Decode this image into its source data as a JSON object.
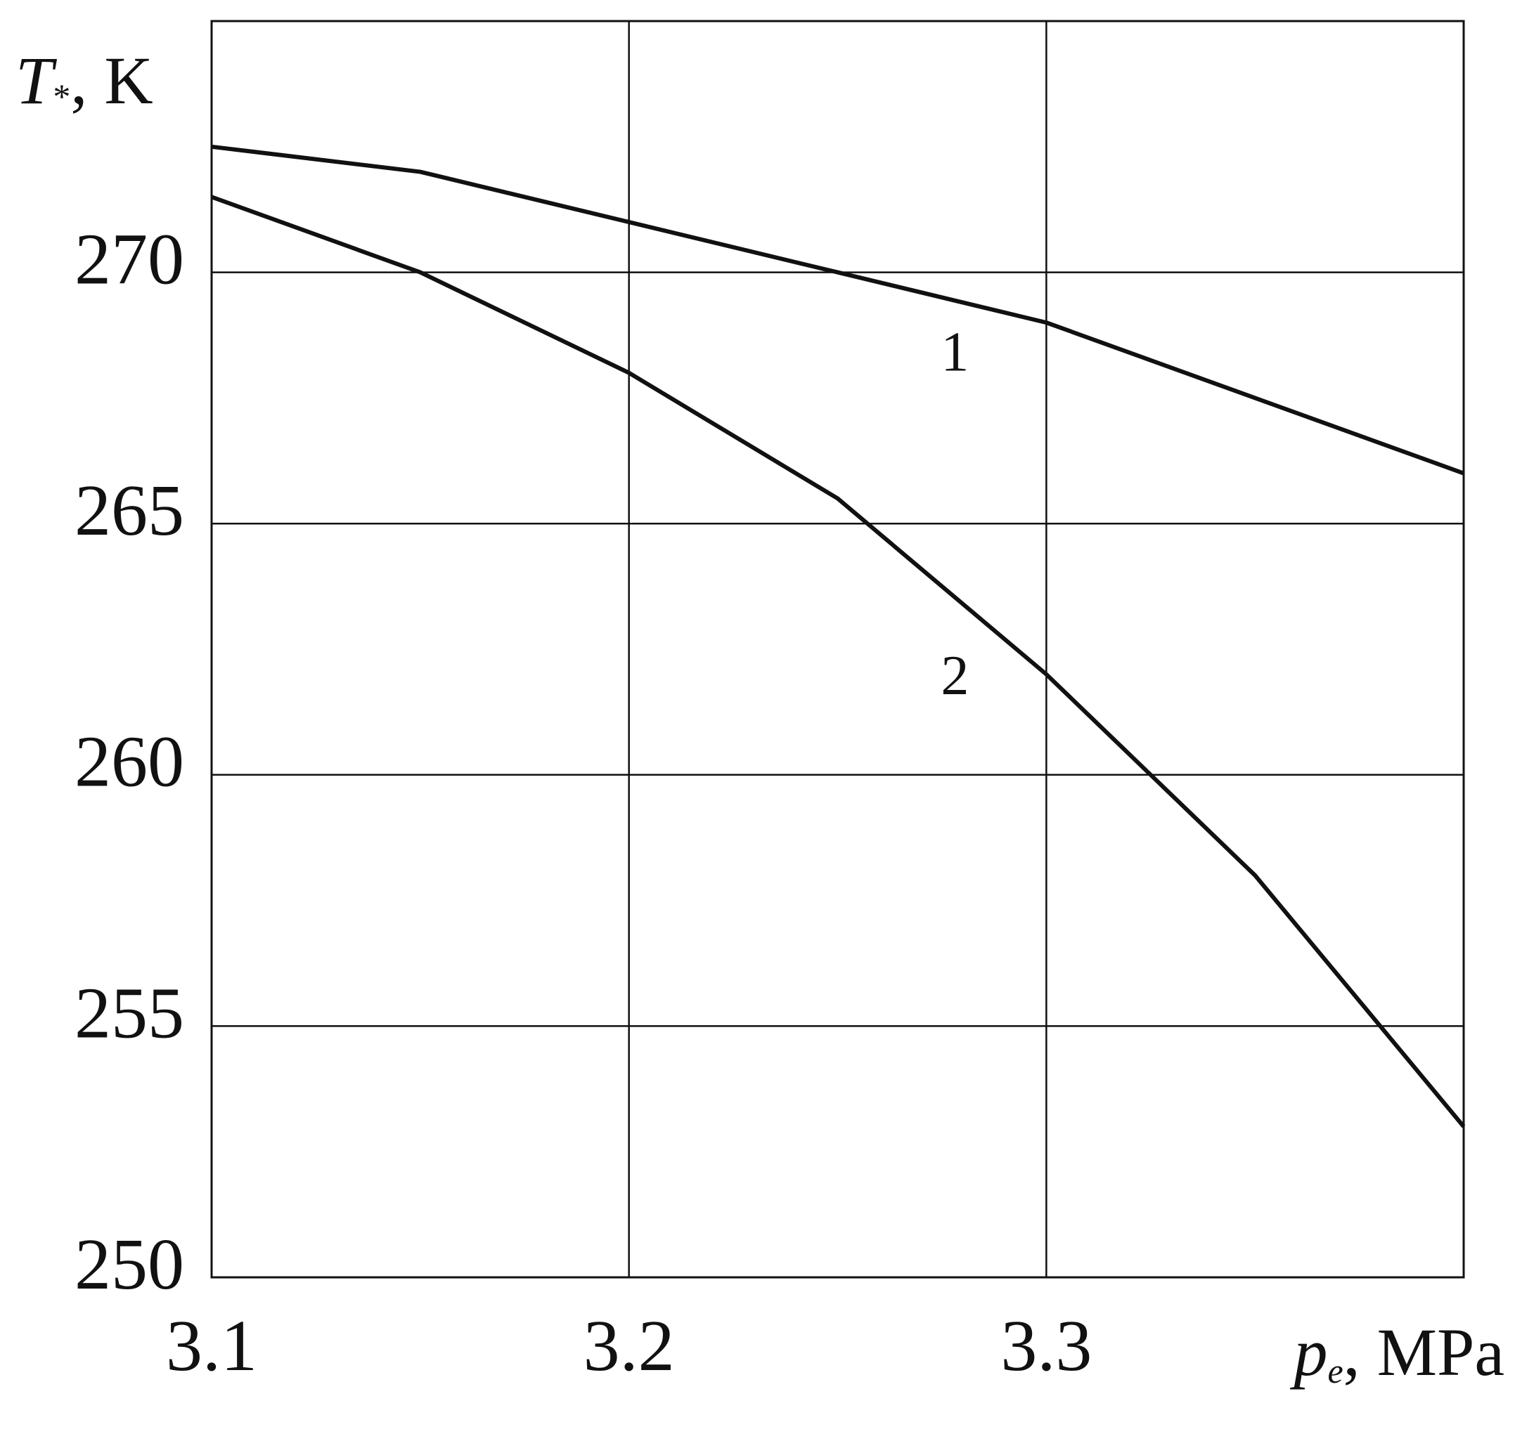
{
  "chart_data": {
    "type": "line",
    "y_label_symbol": "T",
    "y_label_subscript": "*",
    "y_label_unit": ", K",
    "x_label_symbol": "p",
    "x_label_subscript": "e",
    "x_label_unit": ", MPa",
    "x": [
      3.1,
      3.15,
      3.2,
      3.25,
      3.3,
      3.35,
      3.4
    ],
    "series": [
      {
        "name": "1",
        "color": "#111111",
        "values": [
          272.5,
          272.0,
          271.0,
          270.0,
          269.0,
          267.5,
          266.0
        ]
      },
      {
        "name": "2",
        "color": "#111111",
        "values": [
          271.5,
          270.0,
          268.0,
          265.5,
          262.0,
          258.0,
          253.0
        ]
      }
    ],
    "xlim": [
      3.1,
      3.4
    ],
    "xticks": [
      3.1,
      3.2,
      3.3
    ],
    "ylim": [
      250,
      275
    ],
    "yticks": [
      250,
      255,
      260,
      265,
      270
    ],
    "grid": true
  }
}
